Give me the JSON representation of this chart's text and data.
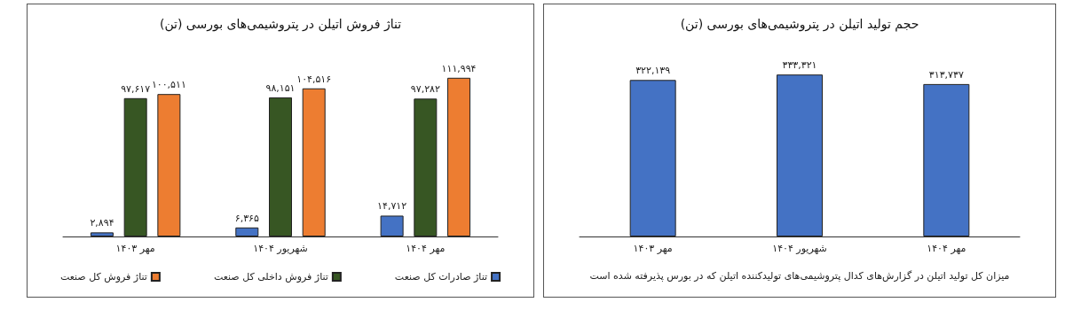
{
  "chart_data": [
    {
      "type": "bar",
      "title": "تناژ فروش اتیلن در پتروشیمی‌های بورسی (تن)",
      "categories": [
        "مهر ۱۴۰۳",
        "شهریور ۱۴۰۴",
        "مهر ۱۴۰۴"
      ],
      "legend": "bottom",
      "series": [
        {
          "name": "تناژ صادرات کل صنعت",
          "color": "#4472c4",
          "values": [
            2894,
            6365,
            14712
          ],
          "value_labels": [
            "۲,۸۹۴",
            "۶,۳۶۵",
            "۱۴,۷۱۲"
          ]
        },
        {
          "name": "تناژ فروش داخلی کل صنعت",
          "color": "#375623",
          "values": [
            97617,
            98151,
            97282
          ],
          "value_labels": [
            "۹۷,۶۱۷",
            "۹۸,۱۵۱",
            "۹۷,۲۸۲"
          ]
        },
        {
          "name": "تناژ فروش کل صنعت",
          "color": "#ed7d31",
          "values": [
            100511,
            104516,
            111994
          ],
          "value_labels": [
            "۱۰۰,۵۱۱",
            "۱۰۴,۵۱۶",
            "۱۱۱,۹۹۴"
          ]
        }
      ]
    },
    {
      "type": "bar",
      "title": "حجم تولید اتیلن در پتروشیمی‌های بورسی (تن)",
      "categories": [
        "مهر ۱۴۰۳",
        "شهریور ۱۴۰۴",
        "مهر ۱۴۰۴"
      ],
      "series": [
        {
          "color": "#4472c4",
          "values": [
            322139,
            333321,
            313737
          ],
          "value_labels": [
            "۳۲۲,۱۳۹",
            "۳۳۳,۳۲۱",
            "۳۱۳,۷۳۷"
          ]
        }
      ],
      "annotations": [
        "میزان کل تولید اتیلن در گزارش‌های کدال پتروشیمی‌های تولیدکننده اتیلن که در بورس پذیرفته شده است"
      ]
    }
  ]
}
